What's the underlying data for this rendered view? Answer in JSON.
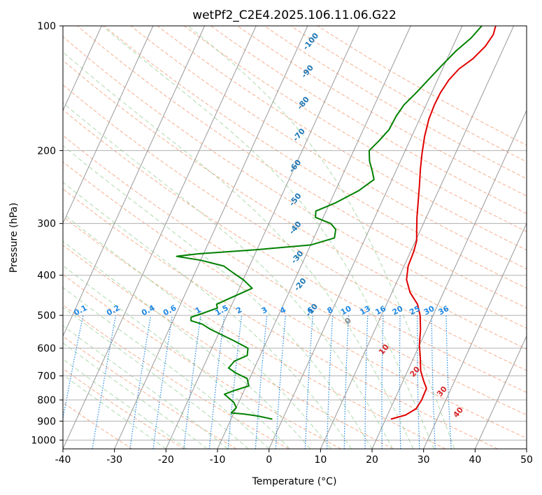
{
  "chart_data": {
    "type": "line",
    "title": "wetPf2_C2E4.2025.106.11.06.G22",
    "xlabel": "Temperature (°C)",
    "ylabel": "Pressure (hPa)",
    "xlim": [
      -40,
      50
    ],
    "ylim_hpa": [
      1050,
      100
    ],
    "y_scale": "log",
    "x_ticks": [
      -40,
      -30,
      -20,
      -10,
      0,
      10,
      20,
      30,
      40,
      50
    ],
    "y_ticks": [
      100,
      200,
      300,
      400,
      500,
      600,
      700,
      800,
      900,
      1000
    ],
    "grid": true,
    "colors": {
      "temperature": "#e00000",
      "dewpoint": "#008000",
      "isotherm": "#999999",
      "dry_adiabat": "#f4a582",
      "moist_adiabat": "#9dd39d",
      "mixing_ratio": "#1e88e5",
      "dry_label": "#d62728",
      "moist_label": "#1f77b4"
    },
    "series": [
      {
        "key": "temperature",
        "points": [
          [
            21.0,
            890
          ],
          [
            23.5,
            870
          ],
          [
            25.0,
            840
          ],
          [
            25.3,
            800
          ],
          [
            25.2,
            750
          ],
          [
            24.0,
            720
          ],
          [
            22.5,
            680
          ],
          [
            21.2,
            630
          ],
          [
            20.0,
            590
          ],
          [
            18.8,
            540
          ],
          [
            17.5,
            500
          ],
          [
            16.0,
            470
          ],
          [
            13.5,
            440
          ],
          [
            11.7,
            410
          ],
          [
            10.8,
            380
          ],
          [
            10.6,
            350
          ],
          [
            10.2,
            330
          ],
          [
            9.2,
            310
          ],
          [
            8.2,
            290
          ],
          [
            7.0,
            265
          ],
          [
            5.8,
            242
          ],
          [
            4.6,
            222
          ],
          [
            3.5,
            203
          ],
          [
            2.5,
            185
          ],
          [
            1.8,
            168
          ],
          [
            1.6,
            155
          ],
          [
            1.7,
            145
          ],
          [
            2.2,
            135
          ],
          [
            3.2,
            127
          ],
          [
            5.0,
            120
          ],
          [
            6.3,
            112
          ],
          [
            6.8,
            105
          ],
          [
            6.5,
            100
          ]
        ]
      },
      {
        "key": "dewpoint",
        "points": [
          [
            -2.0,
            890
          ],
          [
            -5.0,
            875
          ],
          [
            -8.0,
            865
          ],
          [
            -10.5,
            860
          ],
          [
            -10.0,
            835
          ],
          [
            -11.0,
            810
          ],
          [
            -13.5,
            775
          ],
          [
            -12.0,
            760
          ],
          [
            -9.5,
            740
          ],
          [
            -10.5,
            710
          ],
          [
            -13.0,
            690
          ],
          [
            -15.0,
            670
          ],
          [
            -14.5,
            645
          ],
          [
            -12.5,
            625
          ],
          [
            -13.0,
            600
          ],
          [
            -16.5,
            575
          ],
          [
            -22.0,
            540
          ],
          [
            -24.0,
            525
          ],
          [
            -26.5,
            515
          ],
          [
            -26.8,
            505
          ],
          [
            -25.0,
            495
          ],
          [
            -22.5,
            480
          ],
          [
            -23.0,
            470
          ],
          [
            -21.0,
            455
          ],
          [
            -17.5,
            430
          ],
          [
            -20.0,
            410
          ],
          [
            -22.5,
            395
          ],
          [
            -25.0,
            380
          ],
          [
            -30.0,
            368
          ],
          [
            -35.0,
            360
          ],
          [
            -31.0,
            355
          ],
          [
            -20.0,
            347
          ],
          [
            -10.0,
            338
          ],
          [
            -6.0,
            325
          ],
          [
            -6.5,
            310
          ],
          [
            -8.0,
            300
          ],
          [
            -11.5,
            290
          ],
          [
            -12.0,
            280
          ],
          [
            -9.0,
            268
          ],
          [
            -5.5,
            250
          ],
          [
            -3.5,
            235
          ],
          [
            -4.5,
            225
          ],
          [
            -6.0,
            212
          ],
          [
            -7.0,
            200
          ],
          [
            -6.0,
            190
          ],
          [
            -5.0,
            178
          ],
          [
            -4.8,
            165
          ],
          [
            -4.3,
            155
          ],
          [
            -3.0,
            145
          ],
          [
            -1.8,
            135
          ],
          [
            -0.5,
            125
          ],
          [
            1.0,
            115
          ],
          [
            2.8,
            107
          ],
          [
            3.8,
            100
          ]
        ]
      }
    ],
    "isotherm_labels": [
      "-100",
      "-90",
      "-80",
      "-70",
      "-60",
      "-50",
      "-40",
      "-30",
      "-20",
      "-10",
      "0",
      "10",
      "20",
      "30",
      "40"
    ],
    "mixing_ratio_labels": [
      "0.1",
      "0.2",
      "0.4",
      "0.6",
      "1",
      "1.5",
      "2",
      "3",
      "4",
      "6",
      "8",
      "10",
      "13",
      "16",
      "20",
      "25",
      "30",
      "36"
    ]
  }
}
